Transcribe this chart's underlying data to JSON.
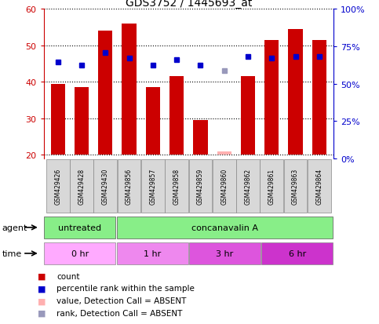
{
  "title": "GDS3752 / 1445693_at",
  "samples": [
    "GSM429426",
    "GSM429428",
    "GSM429430",
    "GSM429856",
    "GSM429857",
    "GSM429858",
    "GSM429859",
    "GSM429860",
    "GSM429862",
    "GSM429861",
    "GSM429863",
    "GSM429864"
  ],
  "bar_heights": [
    39.5,
    38.5,
    54.0,
    56.0,
    38.5,
    41.5,
    29.5,
    21.0,
    41.5,
    51.5,
    54.5,
    51.5
  ],
  "bar_colors": [
    "#cc0000",
    "#cc0000",
    "#cc0000",
    "#cc0000",
    "#cc0000",
    "#cc0000",
    "#cc0000",
    "#ffb0b0",
    "#cc0000",
    "#cc0000",
    "#cc0000",
    "#cc0000"
  ],
  "percentile_values": [
    45.5,
    44.5,
    48.0,
    46.5,
    44.5,
    46.0,
    44.5,
    43.0,
    47.0,
    46.5,
    47.0,
    47.0
  ],
  "percentile_colors": [
    "#0000cc",
    "#0000cc",
    "#0000cc",
    "#0000cc",
    "#0000cc",
    "#0000cc",
    "#0000cc",
    "#9999bb",
    "#0000cc",
    "#0000cc",
    "#0000cc",
    "#0000cc"
  ],
  "ylim_left": [
    19,
    60
  ],
  "ylim_right": [
    0,
    100
  ],
  "yticks_left": [
    20,
    30,
    40,
    50,
    60
  ],
  "yticks_right": [
    0,
    25,
    50,
    75,
    100
  ],
  "ytick_labels_right": [
    "0%",
    "25%",
    "50%",
    "75%",
    "100%"
  ],
  "agent_groups": [
    {
      "label": "untreated",
      "start": 0,
      "end": 3,
      "color": "#88ee88"
    },
    {
      "label": "concanavalin A",
      "start": 3,
      "end": 12,
      "color": "#88ee88"
    }
  ],
  "time_groups": [
    {
      "label": "0 hr",
      "start": 0,
      "end": 3,
      "color": "#ffaaff"
    },
    {
      "label": "1 hr",
      "start": 3,
      "end": 6,
      "color": "#ee66ee"
    },
    {
      "label": "3 hr",
      "start": 6,
      "end": 9,
      "color": "#dd44dd"
    },
    {
      "label": "6 hr",
      "start": 9,
      "end": 12,
      "color": "#cc33cc"
    }
  ],
  "legend_items": [
    {
      "label": "count",
      "color": "#cc0000"
    },
    {
      "label": "percentile rank within the sample",
      "color": "#0000cc"
    },
    {
      "label": "value, Detection Call = ABSENT",
      "color": "#ffb0b0"
    },
    {
      "label": "rank, Detection Call = ABSENT",
      "color": "#9999bb"
    }
  ],
  "bar_bottom": 20,
  "left_tick_color": "#cc0000",
  "right_tick_color": "#0000cc",
  "agent_label_color": "#000000",
  "time_label_color": "#000000"
}
